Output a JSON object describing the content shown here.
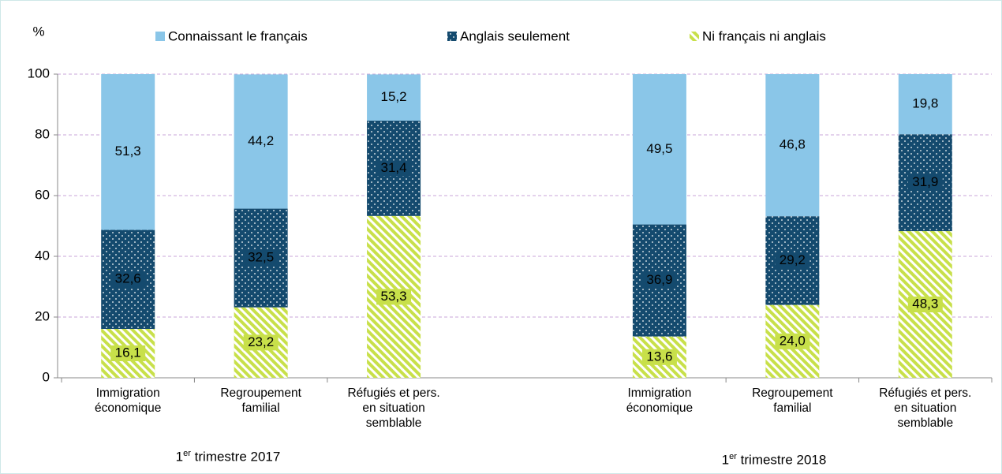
{
  "chart_data": {
    "type": "stacked_bar",
    "y_label": "%",
    "categories": [
      "Immigration économique",
      "Regroupement familial",
      "Réfugiés et pers. en situation semblable",
      null,
      "Immigration économique",
      "Regroupement familial",
      "Réfugiés et pers. en situation semblable"
    ],
    "series": [
      {
        "name": "Ni français ni anglais",
        "color": "#c8e04a",
        "pattern": "stripes",
        "values": [
          16.1,
          23.2,
          53.3,
          null,
          13.6,
          24.0,
          48.3
        ],
        "value_labels": [
          "16,1",
          "23,2",
          "53,3",
          null,
          "13,6",
          "24,0",
          "48,3"
        ]
      },
      {
        "name": "Anglais seulement",
        "color": "#144a6e",
        "pattern": "dots",
        "values": [
          32.6,
          32.5,
          31.4,
          null,
          36.9,
          29.2,
          31.9
        ],
        "value_labels": [
          "32,6",
          "32,5",
          "31,4",
          null,
          "36,9",
          "29,2",
          "31,9"
        ]
      },
      {
        "name": "Connaissant le français",
        "color": "#8ac6e8",
        "pattern": "solid",
        "values": [
          51.3,
          44.2,
          15.2,
          null,
          49.5,
          46.8,
          19.8
        ],
        "value_labels": [
          "51,3",
          "44,2",
          "15,2",
          null,
          "49,5",
          "46,8",
          "19,8"
        ]
      }
    ],
    "legend_order": [
      2,
      1,
      0
    ],
    "groups": [
      {
        "number": "1",
        "suffix": "er",
        "text": "trimestre 2017"
      },
      {
        "number": "1",
        "suffix": "er",
        "text": "trimestre 2018"
      }
    ],
    "ylim": [
      0,
      100
    ],
    "yticks": [
      0,
      20,
      40,
      60,
      80,
      100
    ],
    "grid": true,
    "legend": "top"
  }
}
